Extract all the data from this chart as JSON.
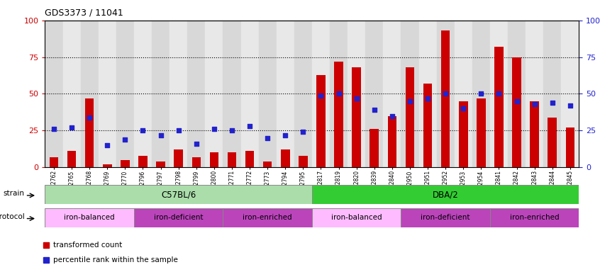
{
  "title": "GDS3373 / 11041",
  "samples": [
    "GSM262762",
    "GSM262765",
    "GSM262768",
    "GSM262769",
    "GSM262770",
    "GSM262796",
    "GSM262797",
    "GSM262798",
    "GSM262799",
    "GSM262800",
    "GSM262771",
    "GSM262772",
    "GSM262773",
    "GSM262794",
    "GSM262795",
    "GSM262817",
    "GSM262819",
    "GSM262820",
    "GSM262839",
    "GSM262840",
    "GSM262950",
    "GSM262951",
    "GSM262952",
    "GSM262953",
    "GSM262954",
    "GSM262841",
    "GSM262842",
    "GSM262843",
    "GSM262844",
    "GSM262845"
  ],
  "bar_values": [
    7,
    11,
    47,
    2,
    5,
    8,
    4,
    12,
    7,
    10,
    10,
    11,
    4,
    12,
    8,
    63,
    72,
    68,
    26,
    35,
    68,
    57,
    93,
    45,
    47,
    82,
    75,
    45,
    34,
    27
  ],
  "dot_values": [
    26,
    27,
    34,
    15,
    19,
    25,
    22,
    25,
    16,
    26,
    25,
    28,
    20,
    22,
    24,
    49,
    50,
    47,
    39,
    35,
    45,
    47,
    50,
    40,
    50,
    50,
    45,
    43,
    44,
    42
  ],
  "bar_color": "#cc0000",
  "dot_color": "#2222cc",
  "ylim": [
    0,
    100
  ],
  "yticks": [
    0,
    25,
    50,
    75,
    100
  ],
  "ytick_labels_left": [
    "0",
    "25",
    "50",
    "75",
    "100"
  ],
  "ytick_labels_right": [
    "0",
    "25",
    "50",
    "75",
    "100%"
  ],
  "grid_values": [
    25,
    50,
    75
  ],
  "col_bg_even": "#d8d8d8",
  "col_bg_odd": "#e8e8e8",
  "plot_bg": "#e0e0e0",
  "strain_groups": [
    {
      "label": "C57BL/6",
      "start": 0,
      "end": 15,
      "color": "#aaddaa"
    },
    {
      "label": "DBA/2",
      "start": 15,
      "end": 30,
      "color": "#33cc33"
    }
  ],
  "protocol_groups": [
    {
      "label": "iron-balanced",
      "start": 0,
      "end": 5,
      "color": "#ffbbff"
    },
    {
      "label": "iron-deficient",
      "start": 5,
      "end": 10,
      "color": "#cc55cc"
    },
    {
      "label": "iron-enriched",
      "start": 10,
      "end": 15,
      "color": "#cc55cc"
    },
    {
      "label": "iron-balanced",
      "start": 15,
      "end": 20,
      "color": "#ffbbff"
    },
    {
      "label": "iron-deficient",
      "start": 20,
      "end": 25,
      "color": "#cc55cc"
    },
    {
      "label": "iron-enriched",
      "start": 25,
      "end": 30,
      "color": "#cc55cc"
    }
  ],
  "legend_items": [
    {
      "label": "transformed count",
      "color": "#cc0000"
    },
    {
      "label": "percentile rank within the sample",
      "color": "#2222cc"
    }
  ],
  "fig_bg": "#ffffff"
}
